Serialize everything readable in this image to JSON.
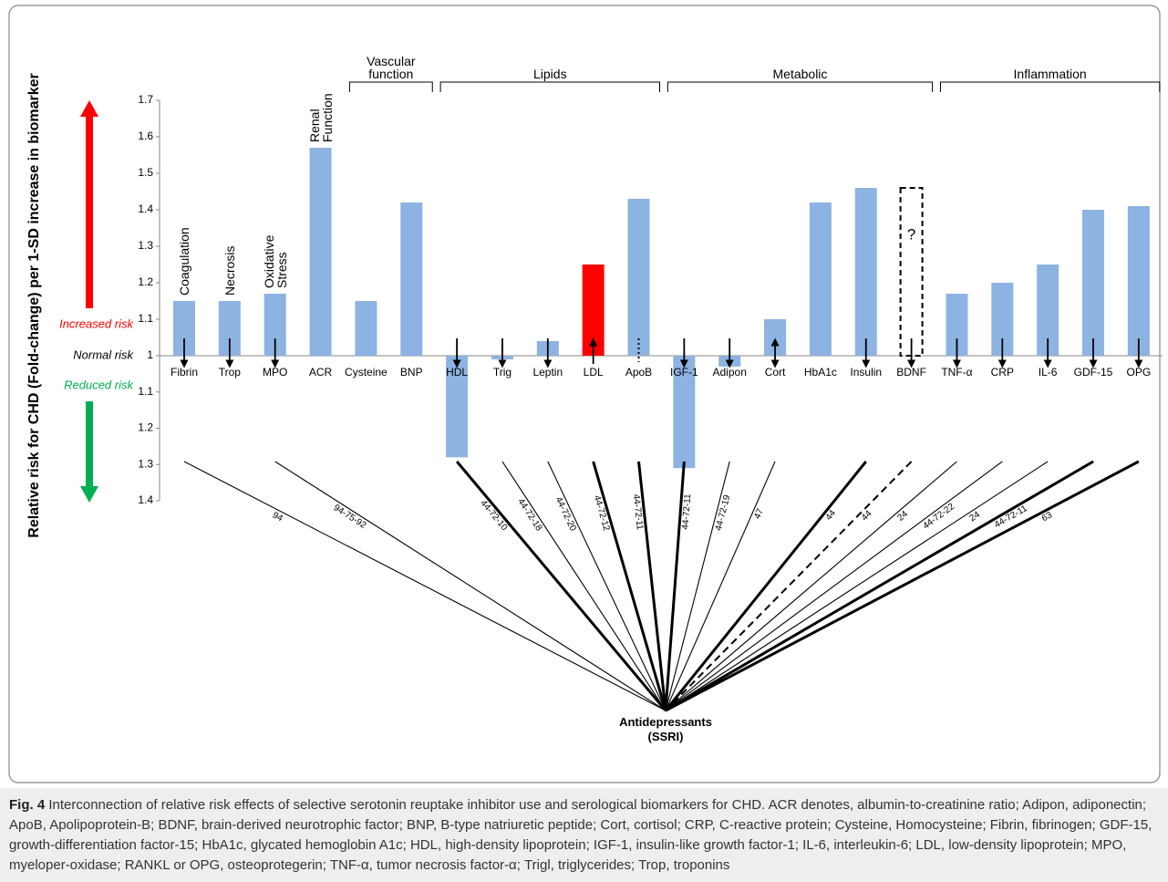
{
  "chart_data": {
    "type": "bidirectional-bar",
    "y_label": "Relative risk for CHD (Fold-change) per 1-SD increase in biomarker",
    "risk_labels": {
      "increased": "Increased risk",
      "normal": "Normal risk",
      "reduced": "Reduced risk"
    },
    "categories": [
      "Fibrin",
      "Trop",
      "MPO",
      "ACR",
      "Cysteine",
      "BNP",
      "HDL",
      "Trig",
      "Leptin",
      "LDL",
      "ApoB",
      "IGF-1",
      "Adipon",
      "Cort",
      "HbA1c",
      "Insulin",
      "BDNF",
      "TNF-α",
      "CRP",
      "IL-6",
      "GDF-15",
      "OPG"
    ],
    "category_groups": [
      "Coagulation",
      "Necrosis",
      "Oxidative Stress",
      "Renal Function",
      "Vascular function",
      "Vascular function",
      "Lipids",
      "Lipids",
      "Lipids",
      "Lipids",
      "Lipids",
      "Metabolic",
      "Metabolic",
      "Metabolic",
      "Metabolic",
      "Metabolic",
      "Metabolic",
      "Inflammation",
      "Inflammation",
      "Inflammation",
      "Inflammation",
      "Inflammation"
    ],
    "values": [
      1.15,
      1.15,
      1.17,
      1.57,
      1.15,
      1.42,
      1.28,
      1.01,
      1.04,
      1.25,
      1.43,
      1.31,
      1.03,
      1.1,
      1.42,
      1.46,
      1.46,
      1.17,
      1.2,
      1.25,
      1.4,
      1.41
    ],
    "direction": [
      "increased",
      "increased",
      "increased",
      "increased",
      "increased",
      "increased",
      "reduced",
      "reduced",
      "increased",
      "increased",
      "increased",
      "reduced",
      "reduced",
      "increased",
      "increased",
      "increased",
      "increased",
      "increased",
      "increased",
      "increased",
      "increased",
      "increased"
    ],
    "colors": [
      "#8db3e2",
      "#8db3e2",
      "#8db3e2",
      "#8db3e2",
      "#8db3e2",
      "#8db3e2",
      "#8db3e2",
      "#8db3e2",
      "#8db3e2",
      "#ff0000",
      "#8db3e2",
      "#8db3e2",
      "#8db3e2",
      "#8db3e2",
      "#8db3e2",
      "#8db3e2",
      "#ffffff",
      "#8db3e2",
      "#8db3e2",
      "#8db3e2",
      "#8db3e2",
      "#8db3e2"
    ],
    "bar_styles": [
      "solid",
      "solid",
      "solid",
      "solid",
      "solid",
      "solid",
      "solid",
      "solid",
      "solid",
      "solid",
      "solid",
      "solid",
      "solid",
      "solid",
      "solid",
      "solid",
      "dashed",
      "solid",
      "solid",
      "solid",
      "solid",
      "solid"
    ],
    "uncertain_label": "?",
    "ssri_effect": [
      "down",
      "down",
      "down",
      null,
      null,
      null,
      "down",
      "down",
      "down",
      "up",
      "dotted",
      "down",
      "down",
      "up",
      null,
      "down",
      "down",
      "down",
      "down",
      "down",
      "down",
      "down"
    ],
    "ylim_increased": [
      1,
      1.7
    ],
    "yticks_increased": [
      1,
      1.1,
      1.2,
      1.3,
      1.4,
      1.5,
      1.6,
      1.7
    ],
    "ylim_reduced": [
      1,
      1.4
    ],
    "yticks_reduced": [
      1.1,
      1.2,
      1.3,
      1.4
    ],
    "hub_label": "Antidepressants (SSRI)",
    "links": [
      {
        "label": "94",
        "target": "Fibrin",
        "style": "thin"
      },
      {
        "label": "94-75-92",
        "target": "MPO",
        "style": "thin"
      },
      {
        "label": "44-72-10",
        "target": "HDL",
        "style": "thick"
      },
      {
        "label": "44-72-18",
        "target": "Trig",
        "style": "thin"
      },
      {
        "label": "44-72-20",
        "target": "Leptin",
        "style": "thin"
      },
      {
        "label": "44-72-12",
        "target": "LDL",
        "style": "thick"
      },
      {
        "label": "44-72-11",
        "target": "ApoB",
        "style": "thick"
      },
      {
        "label": "44-72-11",
        "target": "IGF-1",
        "style": "thick"
      },
      {
        "label": "44-72-19",
        "target": "Adipon",
        "style": "thin"
      },
      {
        "label": "47",
        "target": "Cort",
        "style": "thin"
      },
      {
        "label": "44",
        "target": "Insulin",
        "style": "thick"
      },
      {
        "label": "44",
        "target": "BDNF",
        "style": "dashed"
      },
      {
        "label": "24",
        "target": "TNF-α",
        "style": "thin"
      },
      {
        "label": "44-72-22",
        "target": "CRP",
        "style": "thin"
      },
      {
        "label": "24",
        "target": "IL-6",
        "style": "thin"
      },
      {
        "label": "44-72-11",
        "target": "GDF-15",
        "style": "thick"
      },
      {
        "label": "63",
        "target": "OPG",
        "style": "thick"
      }
    ],
    "caption": {
      "label": "Fig. 4",
      "text": "Interconnection of relative risk effects of selective serotonin reuptake inhibitor use and serological biomarkers for CHD. ACR denotes, albumin-to-creatinine ratio; Adipon, adiponectin; ApoB, Apolipoprotein-B; BDNF, brain-derived neurotrophic factor; BNP, B-type natriuretic peptide; Cort, cortisol; CRP, C-reactive protein; Cysteine, Homocysteine; Fibrin, fibrinogen; GDF-15, growth-differentiation factor-15; HbA1c, glycated hemoglobin A1c; HDL, high-density lipoprotein; IGF-1, insulin-like growth factor-1; IL-6, interleukin-6; LDL, low-density lipoprotein; MPO, myeloper-oxidase; RANKL or OPG, osteoprotegerin; TNF-α, tumor necrosis factor-α; Trigl, triglycerides; Trop, troponins"
    }
  }
}
